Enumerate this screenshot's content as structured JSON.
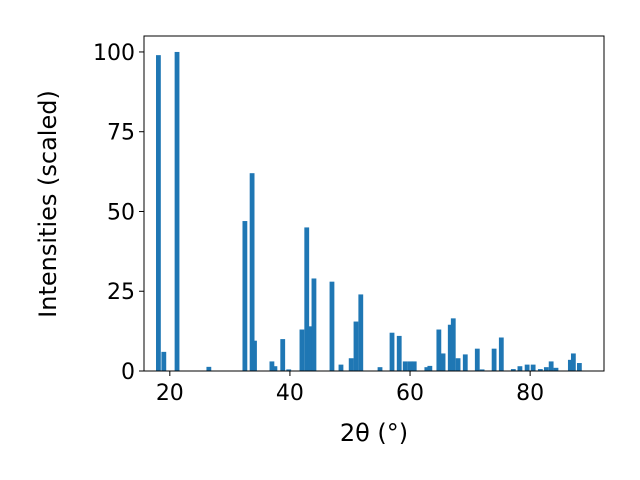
{
  "chart_data": {
    "type": "bar",
    "xlabel": "2θ (°)",
    "ylabel": "Intensities (scaled)",
    "x": [
      18.1,
      19.0,
      21.2,
      26.5,
      32.5,
      33.7,
      34.1,
      37.0,
      37.5,
      38.8,
      39.8,
      42.0,
      42.8,
      43.3,
      44.0,
      47.0,
      48.5,
      50.2,
      51.0,
      51.8,
      55.0,
      57.0,
      58.2,
      59.2,
      60.0,
      60.7,
      62.8,
      63.3,
      64.8,
      65.5,
      66.7,
      67.2,
      68.0,
      69.2,
      71.2,
      72.0,
      74.0,
      75.2,
      77.2,
      78.3,
      79.5,
      80.5,
      81.7,
      82.7,
      83.5,
      84.3,
      86.7,
      87.2,
      88.2
    ],
    "values": [
      99,
      6,
      100,
      1.3,
      47,
      62,
      9.5,
      3,
      1.5,
      10,
      0.5,
      13,
      45,
      14,
      29,
      28,
      2,
      4,
      15.5,
      24,
      1.2,
      12,
      11,
      3,
      3,
      3,
      1.2,
      1.6,
      13,
      5.5,
      14.5,
      16.5,
      4,
      5.2,
      7,
      0.5,
      7,
      10.5,
      0.6,
      1.5,
      2,
      2,
      0.6,
      1.2,
      3,
      1,
      3.5,
      5.5,
      2.5
    ],
    "color": "#1f77b4",
    "xlim": [
      15.7,
      92.3
    ],
    "ylim": [
      0,
      105
    ],
    "xticks": [
      20,
      40,
      60,
      80
    ],
    "yticks": [
      0,
      25,
      50,
      75,
      100
    ],
    "grid": false
  }
}
